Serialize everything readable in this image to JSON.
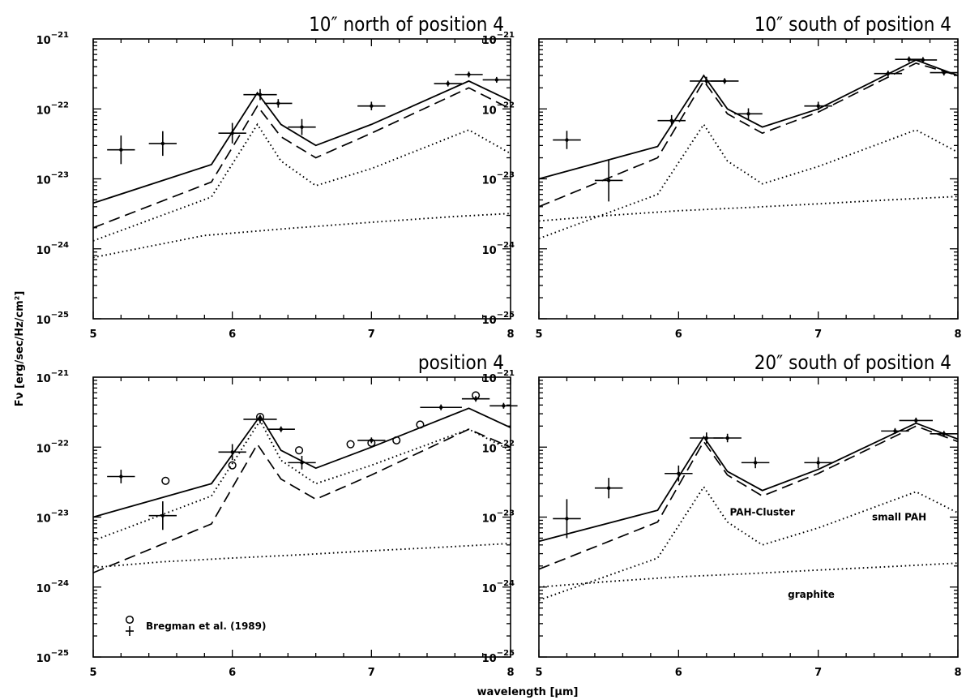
{
  "figure": {
    "ylabel": "Fν [erg/sec/Hz/cm²]",
    "xlabel": "wavelength [μm]",
    "ylim": [
      1e-25,
      1e-21
    ],
    "xlim": [
      5,
      8
    ],
    "y_scale": "log",
    "x_ticks": [
      "5",
      "6",
      "7",
      "8"
    ],
    "y_ticks": [
      {
        "base": "10",
        "exp": "−21"
      },
      {
        "base": "10",
        "exp": "−22"
      },
      {
        "base": "10",
        "exp": "−23"
      },
      {
        "base": "10",
        "exp": "−24"
      },
      {
        "base": "10",
        "exp": "−25"
      }
    ]
  },
  "chart_data": [
    {
      "type": "line",
      "title": "10″ north of position 4",
      "model_lines": [
        {
          "style": "solid",
          "x": [
            5.0,
            5.85,
            6.18,
            6.35,
            6.6,
            7.0,
            7.7,
            8.0
          ],
          "y": [
            4.5e-24,
            1.6e-23,
            1.7e-22,
            6e-23,
            3e-23,
            6e-23,
            2.5e-22,
            1.3e-22
          ]
        },
        {
          "style": "dashed",
          "x": [
            5.0,
            5.85,
            6.18,
            6.35,
            6.6,
            7.0,
            7.7,
            8.0
          ],
          "y": [
            2e-24,
            9e-24,
            1.1e-22,
            4e-23,
            2e-23,
            4.5e-23,
            2e-22,
            1e-22
          ]
        },
        {
          "style": "dotted",
          "x": [
            5.0,
            5.85,
            6.18,
            6.35,
            6.6,
            7.0,
            7.7,
            8.0
          ],
          "y": [
            1.3e-24,
            5.5e-24,
            6e-23,
            1.8e-23,
            8e-24,
            1.4e-23,
            5e-23,
            2.3e-23
          ]
        },
        {
          "style": "dotted",
          "x": [
            5.0,
            5.8,
            6.4,
            7.0,
            7.6,
            8.0
          ],
          "y": [
            7.5e-25,
            1.55e-24,
            1.95e-24,
            2.4e-24,
            2.9e-24,
            3.2e-24
          ]
        }
      ],
      "data_points": [
        {
          "x": 5.2,
          "y": 2.6e-23,
          "xerr": 0.1,
          "yerr_factor": 1.6
        },
        {
          "x": 5.5,
          "y": 3.2e-23,
          "xerr": 0.1,
          "yerr_factor": 1.5
        },
        {
          "x": 6.0,
          "y": 4.5e-23,
          "xerr": 0.1,
          "yerr_factor": 1.4
        },
        {
          "x": 6.2,
          "y": 1.6e-22,
          "xerr": 0.12,
          "yerr_factor": 1.2
        },
        {
          "x": 6.33,
          "y": 1.2e-22,
          "xerr": 0.1,
          "yerr_factor": 1.15
        },
        {
          "x": 6.5,
          "y": 5.5e-23,
          "xerr": 0.1,
          "yerr_factor": 1.3
        },
        {
          "x": 7.0,
          "y": 1.1e-22,
          "xerr": 0.1,
          "yerr_factor": 1.15
        },
        {
          "x": 7.55,
          "y": 2.3e-22,
          "xerr": 0.1,
          "yerr_factor": 1.1
        },
        {
          "x": 7.7,
          "y": 3.1e-22,
          "xerr": 0.1,
          "yerr_factor": 1.1
        },
        {
          "x": 7.9,
          "y": 2.6e-22,
          "xerr": 0.1,
          "yerr_factor": 1.1
        }
      ],
      "open_circles": [],
      "annotations": []
    },
    {
      "type": "line",
      "title": "10″ south of position 4",
      "model_lines": [
        {
          "style": "solid",
          "x": [
            5.0,
            5.85,
            6.18,
            6.35,
            6.6,
            7.0,
            7.7,
            8.0
          ],
          "y": [
            1e-23,
            2.9e-23,
            3e-22,
            1e-22,
            5.5e-23,
            1e-22,
            5e-22,
            3e-22
          ]
        },
        {
          "style": "dashed",
          "x": [
            5.0,
            5.85,
            6.18,
            6.35,
            6.6,
            7.0,
            7.7,
            8.0
          ],
          "y": [
            4e-24,
            2e-23,
            2.5e-22,
            8.5e-23,
            4.5e-23,
            9e-23,
            4.5e-22,
            3e-22
          ]
        },
        {
          "style": "dotted",
          "x": [
            5.0,
            5.85,
            6.18,
            6.35,
            6.6,
            7.0,
            7.7,
            8.0
          ],
          "y": [
            1.4e-24,
            6e-24,
            6e-23,
            1.8e-23,
            8.5e-24,
            1.5e-23,
            5e-23,
            2.4e-23
          ]
        },
        {
          "style": "dotted",
          "x": [
            5.0,
            5.5,
            6.0,
            6.5,
            7.0,
            7.5,
            8.0
          ],
          "y": [
            2.5e-24,
            3e-24,
            3.5e-24,
            3.9e-24,
            4.4e-24,
            5e-24,
            5.6e-24
          ]
        }
      ],
      "data_points": [
        {
          "x": 5.2,
          "y": 3.6e-23,
          "xerr": 0.1,
          "yerr_factor": 1.35
        },
        {
          "x": 5.5,
          "y": 9.5e-24,
          "xerr": 0.1,
          "yerr_factor": 2.0
        },
        {
          "x": 5.95,
          "y": 6.8e-23,
          "xerr": 0.1,
          "yerr_factor": 1.2
        },
        {
          "x": 6.2,
          "y": 2.5e-22,
          "xerr": 0.12,
          "yerr_factor": 1.15
        },
        {
          "x": 6.33,
          "y": 2.5e-22,
          "xerr": 0.1,
          "yerr_factor": 1.1
        },
        {
          "x": 6.5,
          "y": 8.5e-23,
          "xerr": 0.1,
          "yerr_factor": 1.2
        },
        {
          "x": 7.0,
          "y": 1.1e-22,
          "xerr": 0.1,
          "yerr_factor": 1.15
        },
        {
          "x": 7.5,
          "y": 3.2e-22,
          "xerr": 0.1,
          "yerr_factor": 1.1
        },
        {
          "x": 7.65,
          "y": 5.1e-22,
          "xerr": 0.1,
          "yerr_factor": 1.1
        },
        {
          "x": 7.75,
          "y": 5e-22,
          "xerr": 0.1,
          "yerr_factor": 1.1
        },
        {
          "x": 7.9,
          "y": 3.3e-22,
          "xerr": 0.1,
          "yerr_factor": 1.1
        }
      ],
      "open_circles": [],
      "annotations": []
    },
    {
      "type": "line",
      "title": "position 4",
      "model_lines": [
        {
          "style": "solid",
          "x": [
            5.0,
            5.85,
            6.2,
            6.35,
            6.6,
            7.0,
            7.7,
            8.0
          ],
          "y": [
            1e-23,
            3e-23,
            2.8e-22,
            9e-23,
            5e-23,
            1e-22,
            3.6e-22,
            1.9e-22
          ]
        },
        {
          "style": "dashed",
          "x": [
            5.0,
            5.85,
            6.18,
            6.35,
            6.6,
            7.0,
            7.7,
            8.0
          ],
          "y": [
            1.6e-24,
            8e-24,
            1.1e-22,
            3.5e-23,
            1.8e-23,
            4e-23,
            1.8e-22,
            1e-22
          ]
        },
        {
          "style": "dotted",
          "x": [
            5.0,
            5.85,
            6.2,
            6.35,
            6.6,
            7.0,
            7.7,
            8.0
          ],
          "y": [
            4.6e-24,
            2e-23,
            2.4e-22,
            6.5e-23,
            3e-23,
            5.5e-23,
            1.8e-22,
            9e-23
          ]
        },
        {
          "style": "dotted",
          "x": [
            5.0,
            5.5,
            6.0,
            6.5,
            7.0,
            7.5,
            8.0
          ],
          "y": [
            1.9e-24,
            2.3e-24,
            2.6e-24,
            2.9e-24,
            3.3e-24,
            3.7e-24,
            4.2e-24
          ]
        }
      ],
      "data_points": [
        {
          "x": 5.2,
          "y": 3.8e-23,
          "xerr": 0.1,
          "yerr_factor": 1.25
        },
        {
          "x": 5.5,
          "y": 1.05e-23,
          "xerr": 0.1,
          "yerr_factor": 1.6
        },
        {
          "x": 6.0,
          "y": 8.5e-23,
          "xerr": 0.1,
          "yerr_factor": 1.3
        },
        {
          "x": 6.2,
          "y": 2.5e-22,
          "xerr": 0.12,
          "yerr_factor": 1.15
        },
        {
          "x": 6.35,
          "y": 1.8e-22,
          "xerr": 0.1,
          "yerr_factor": 1.1
        },
        {
          "x": 6.5,
          "y": 6e-23,
          "xerr": 0.1,
          "yerr_factor": 1.25
        },
        {
          "x": 7.0,
          "y": 1.25e-22,
          "xerr": 0.1,
          "yerr_factor": 1.1
        },
        {
          "x": 7.5,
          "y": 3.7e-22,
          "xerr": 0.15,
          "yerr_factor": 1.1
        },
        {
          "x": 7.75,
          "y": 4.9e-22,
          "xerr": 0.1,
          "yerr_factor": 1.1
        },
        {
          "x": 7.95,
          "y": 3.9e-22,
          "xerr": 0.1,
          "yerr_factor": 1.1
        }
      ],
      "open_circles": [
        {
          "x": 5.52,
          "y": 3.3e-23
        },
        {
          "x": 6.0,
          "y": 5.5e-23
        },
        {
          "x": 6.2,
          "y": 2.7e-22
        },
        {
          "x": 6.48,
          "y": 9e-23
        },
        {
          "x": 6.85,
          "y": 1.1e-22
        },
        {
          "x": 7.0,
          "y": 1.15e-22
        },
        {
          "x": 7.18,
          "y": 1.25e-22
        },
        {
          "x": 7.35,
          "y": 2.1e-22
        },
        {
          "x": 7.75,
          "y": 5.5e-22
        }
      ],
      "annotations": [],
      "legend": {
        "text": "Bregman et al. (1989)",
        "position": "bottom-left"
      }
    },
    {
      "type": "line",
      "title": "20″ south of position 4",
      "model_lines": [
        {
          "style": "solid",
          "x": [
            5.0,
            5.85,
            6.18,
            6.35,
            6.6,
            7.0,
            7.7,
            8.0
          ],
          "y": [
            4.5e-24,
            1.25e-23,
            1.4e-22,
            4.5e-23,
            2.4e-23,
            4.8e-23,
            2.2e-22,
            1.3e-22
          ]
        },
        {
          "style": "dashed",
          "x": [
            5.0,
            5.85,
            6.18,
            6.35,
            6.6,
            7.0,
            7.7,
            8.0
          ],
          "y": [
            1.8e-24,
            8.5e-24,
            1.2e-22,
            4e-23,
            2e-23,
            4.2e-23,
            2e-22,
            1.2e-22
          ]
        },
        {
          "style": "dotted",
          "x": [
            5.0,
            5.85,
            6.18,
            6.35,
            6.6,
            7.0,
            7.7,
            8.0
          ],
          "y": [
            6.5e-25,
            2.6e-24,
            2.7e-23,
            8.5e-24,
            4e-24,
            7e-24,
            2.3e-23,
            1.15e-23
          ]
        },
        {
          "style": "dotted",
          "x": [
            5.0,
            5.5,
            6.0,
            6.5,
            7.0,
            7.5,
            8.0
          ],
          "y": [
            1e-24,
            1.2e-24,
            1.4e-24,
            1.55e-24,
            1.75e-24,
            1.95e-24,
            2.2e-24
          ]
        }
      ],
      "data_points": [
        {
          "x": 5.2,
          "y": 9.5e-24,
          "xerr": 0.1,
          "yerr_factor": 1.9
        },
        {
          "x": 5.5,
          "y": 2.6e-23,
          "xerr": 0.1,
          "yerr_factor": 1.4
        },
        {
          "x": 6.0,
          "y": 4.2e-23,
          "xerr": 0.1,
          "yerr_factor": 1.3
        },
        {
          "x": 6.2,
          "y": 1.35e-22,
          "xerr": 0.12,
          "yerr_factor": 1.2
        },
        {
          "x": 6.35,
          "y": 1.35e-22,
          "xerr": 0.1,
          "yerr_factor": 1.15
        },
        {
          "x": 6.55,
          "y": 6e-23,
          "xerr": 0.1,
          "yerr_factor": 1.2
        },
        {
          "x": 7.0,
          "y": 6e-23,
          "xerr": 0.1,
          "yerr_factor": 1.2
        },
        {
          "x": 7.55,
          "y": 1.7e-22,
          "xerr": 0.1,
          "yerr_factor": 1.1
        },
        {
          "x": 7.7,
          "y": 2.4e-22,
          "xerr": 0.12,
          "yerr_factor": 1.1
        },
        {
          "x": 7.9,
          "y": 1.55e-22,
          "xerr": 0.1,
          "yerr_factor": 1.1
        }
      ],
      "open_circles": [],
      "annotations": [
        {
          "text": "PAH-Cluster",
          "x": 6.6,
          "y": 1.05e-23
        },
        {
          "text": "small PAH",
          "x": 7.58,
          "y": 9e-24
        },
        {
          "text": "graphite",
          "x": 6.95,
          "y": 7e-25
        }
      ]
    }
  ]
}
